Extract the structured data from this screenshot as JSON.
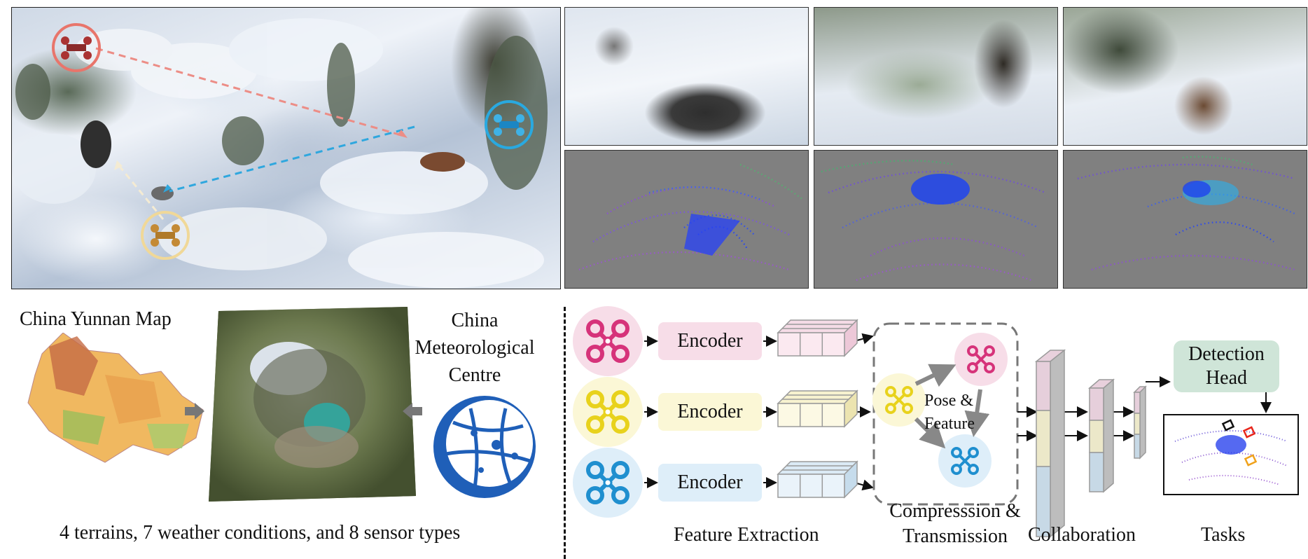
{
  "top": {
    "scene_alt_icons": [
      "drone-red-icon",
      "drone-blue-icon",
      "drone-yellow-icon"
    ],
    "colors": {
      "red": "#e8756b",
      "blue": "#29a9e0",
      "yellow": "#f0d898"
    }
  },
  "map_section": {
    "yunnan_title": "China Yunnan Map",
    "meteo_title_line1": "China",
    "meteo_title_line2": "Meteorological",
    "meteo_title_line3": "Centre",
    "caption": "4 terrains, 7 weather conditions, and 8 sensor types"
  },
  "pipeline": {
    "encoder_label": "Encoder",
    "pose_label_line1": "Pose &",
    "pose_label_line2": "Feature",
    "detection_head_line1": "Detection",
    "detection_head_line2": "Head",
    "stage_feature_extraction": "Feature Extraction",
    "stage_compression_line1": "Compresssion &",
    "stage_compression_line2": "Transmission",
    "stage_collaboration": "Collaboration",
    "stage_tasks": "Tasks",
    "colors": {
      "pink": "#f7dde8",
      "pink_icon": "#d6337a",
      "yellow": "#fbf7d6",
      "yellow_icon": "#e8d21c",
      "blue": "#deeef9",
      "blue_icon": "#1f8fcf",
      "head_fill": "#cfe5d8"
    }
  }
}
